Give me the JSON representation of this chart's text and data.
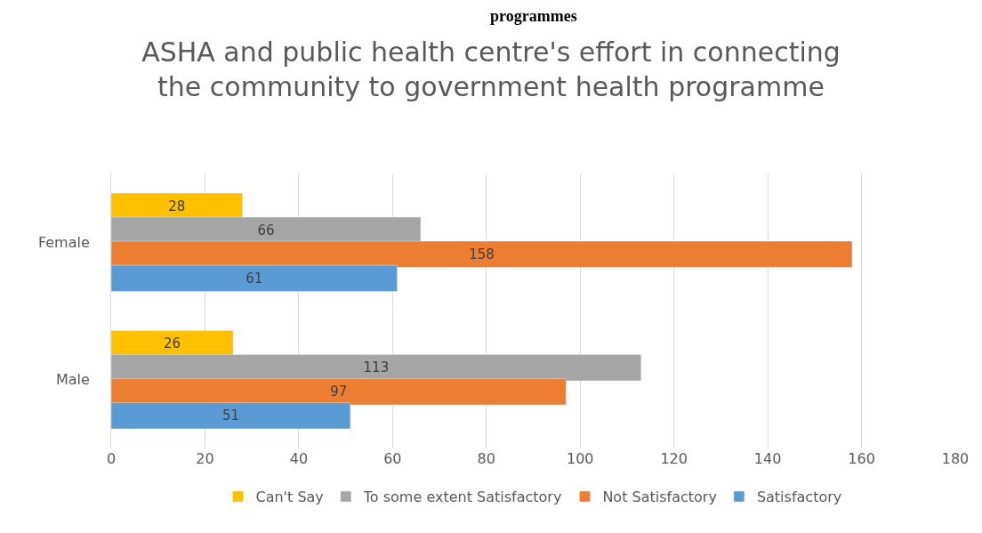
{
  "chart_data": {
    "type": "bar",
    "orientation": "horizontal",
    "title": "ASHA and public health centre's effort in connecting the community to government health programme",
    "annotations": [
      "programmes"
    ],
    "categories": [
      "Female",
      "Male"
    ],
    "series": [
      {
        "name": "Can't Say",
        "color": "#ffc000",
        "values": [
          28,
          26
        ]
      },
      {
        "name": "To some extent Satisfactory",
        "color": "#a5a5a5",
        "values": [
          66,
          113
        ]
      },
      {
        "name": "Not Satisfactory",
        "color": "#ed7d31",
        "values": [
          158,
          97
        ]
      },
      {
        "name": "Satisfactory",
        "color": "#5b9bd5",
        "values": [
          61,
          51
        ]
      }
    ],
    "xlim": [
      0,
      180
    ],
    "xticks": [
      0,
      20,
      40,
      60,
      80,
      100,
      120,
      140,
      160,
      180
    ],
    "grid": "x",
    "legend": "bottom",
    "data_labels": true
  }
}
